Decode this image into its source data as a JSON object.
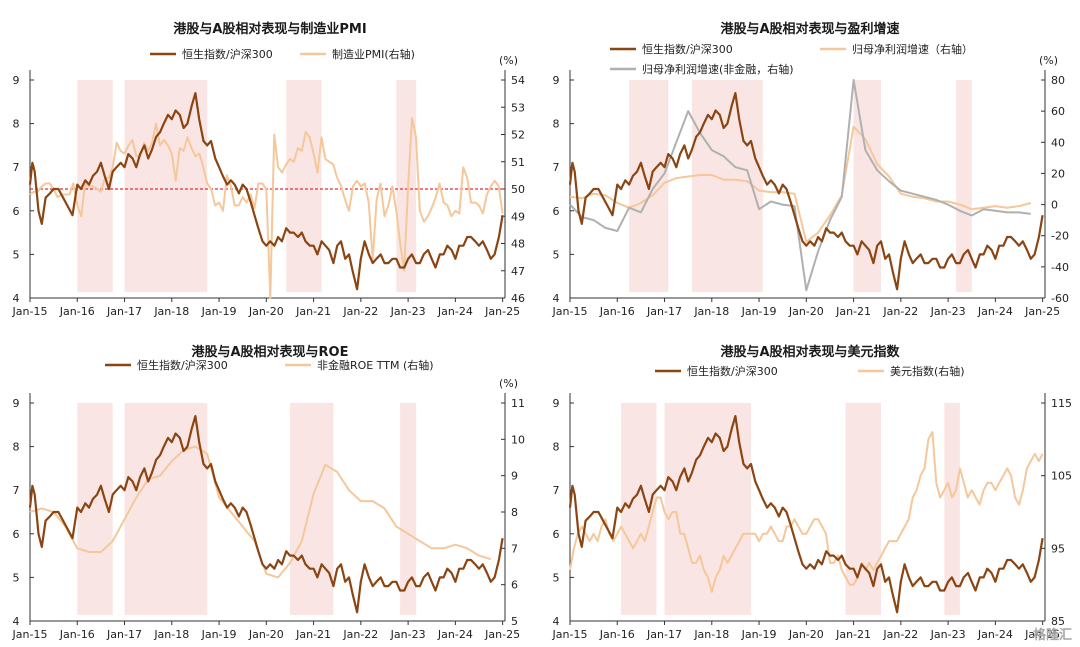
{
  "colors": {
    "hk": "#8B4513",
    "right": "#F5C79A",
    "gray": "#B0B0B0",
    "shade": "#F9E6E4",
    "ref": "#E03030"
  },
  "watermark": "格隆汇",
  "x_labels": [
    "Jan-15",
    "Jan-16",
    "Jan-17",
    "Jan-18",
    "Jan-19",
    "Jan-20",
    "Jan-21",
    "Jan-22",
    "Jan-23",
    "Jan-24",
    "Jan-25"
  ],
  "left_ticks": [
    "4",
    "5",
    "6",
    "7",
    "8",
    "9"
  ],
  "hk_series": {
    "name": "恒生指数/沪深300",
    "x": [
      2015.0,
      2015.05,
      2015.1,
      2015.18,
      2015.25,
      2015.33,
      2015.42,
      2015.5,
      2015.6,
      2015.7,
      2015.8,
      2015.9,
      2016.0,
      2016.08,
      2016.17,
      2016.25,
      2016.33,
      2016.42,
      2016.5,
      2016.58,
      2016.67,
      2016.75,
      2016.83,
      2016.92,
      2017.0,
      2017.08,
      2017.17,
      2017.25,
      2017.33,
      2017.42,
      2017.5,
      2017.58,
      2017.67,
      2017.75,
      2017.83,
      2017.92,
      2018.0,
      2018.08,
      2018.17,
      2018.25,
      2018.33,
      2018.42,
      2018.5,
      2018.58,
      2018.67,
      2018.75,
      2018.83,
      2018.92,
      2019.0,
      2019.08,
      2019.17,
      2019.25,
      2019.33,
      2019.42,
      2019.5,
      2019.58,
      2019.67,
      2019.75,
      2019.83,
      2019.92,
      2020.0,
      2020.08,
      2020.17,
      2020.25,
      2020.33,
      2020.42,
      2020.5,
      2020.58,
      2020.67,
      2020.75,
      2020.83,
      2020.92,
      2021.0,
      2021.08,
      2021.17,
      2021.25,
      2021.33,
      2021.42,
      2021.5,
      2021.58,
      2021.67,
      2021.75,
      2021.83,
      2021.92,
      2022.0,
      2022.08,
      2022.17,
      2022.25,
      2022.33,
      2022.42,
      2022.5,
      2022.58,
      2022.67,
      2022.75,
      2022.83,
      2022.92,
      2023.0,
      2023.08,
      2023.17,
      2023.25,
      2023.33,
      2023.42,
      2023.5,
      2023.58,
      2023.67,
      2023.75,
      2023.83,
      2023.92,
      2024.0,
      2024.08,
      2024.17,
      2024.25,
      2024.33,
      2024.42,
      2024.5,
      2024.58,
      2024.67,
      2024.75,
      2024.83,
      2024.92,
      2025.0
    ],
    "values": [
      6.6,
      7.1,
      6.9,
      6.0,
      5.7,
      6.3,
      6.4,
      6.5,
      6.5,
      6.3,
      6.1,
      5.9,
      6.6,
      6.5,
      6.7,
      6.6,
      6.8,
      6.9,
      7.1,
      6.8,
      6.5,
      6.9,
      7.0,
      7.1,
      7.0,
      7.3,
      7.2,
      7.0,
      7.3,
      7.5,
      7.2,
      7.4,
      7.7,
      7.8,
      8.0,
      8.2,
      8.1,
      8.3,
      8.2,
      7.9,
      8.0,
      8.4,
      8.7,
      8.1,
      7.6,
      7.5,
      7.6,
      7.2,
      7.0,
      6.8,
      6.6,
      6.7,
      6.6,
      6.4,
      6.6,
      6.5,
      6.2,
      5.9,
      5.6,
      5.3,
      5.2,
      5.3,
      5.2,
      5.4,
      5.3,
      5.6,
      5.5,
      5.5,
      5.4,
      5.5,
      5.3,
      5.2,
      5.2,
      5.0,
      5.3,
      5.2,
      5.1,
      4.8,
      5.2,
      5.3,
      4.9,
      5.0,
      4.6,
      4.2,
      4.9,
      5.3,
      5.0,
      4.8,
      4.9,
      5.0,
      4.8,
      4.8,
      4.9,
      4.9,
      4.7,
      4.7,
      4.9,
      5.0,
      4.8,
      4.8,
      5.0,
      5.1,
      4.9,
      4.7,
      5.0,
      5.0,
      5.2,
      5.1,
      4.9,
      5.2,
      5.2,
      5.4,
      5.4,
      5.3,
      5.2,
      5.3,
      5.1,
      4.9,
      5.0,
      5.4,
      5.9
    ]
  },
  "panels": [
    {
      "title": "港股与A股相对表现与制造业PMI",
      "left_range": [
        4,
        9
      ],
      "right_range": [
        46,
        54
      ],
      "right_ticks": [
        "46",
        "47",
        "48",
        "49",
        "50",
        "51",
        "52",
        "53",
        "54"
      ],
      "right_unit": "(%)",
      "legend": [
        {
          "label": "恒生指数/沪深300"
        },
        {
          "label": "制造业PMI(右轴)"
        }
      ],
      "reference_line": 50,
      "shading": [
        [
          2016.0,
          2016.75
        ],
        [
          2017.0,
          2018.75
        ],
        [
          2020.42,
          2021.17
        ],
        [
          2022.75,
          2023.17
        ]
      ],
      "right_series": [
        {
          "name": "制造业PMI(右轴)",
          "values": [
            49.8,
            49.9,
            49.9,
            50.1,
            50.2,
            50.2,
            50.0,
            49.7,
            49.8,
            49.8,
            49.8,
            50.2,
            49.4,
            49.0,
            50.2,
            50.1,
            50.1,
            50.0,
            49.9,
            50.4,
            50.4,
            50.8,
            51.7,
            51.4,
            51.3,
            51.6,
            51.8,
            51.2,
            51.2,
            51.7,
            51.4,
            51.7,
            52.4,
            51.6,
            51.8,
            51.6,
            51.3,
            50.3,
            51.5,
            51.4,
            51.9,
            51.5,
            51.2,
            51.3,
            50.8,
            50.2,
            50.0,
            49.4,
            49.5,
            49.2,
            50.5,
            50.1,
            49.4,
            49.4,
            49.7,
            49.5,
            49.8,
            49.3,
            50.2,
            50.2,
            50.0,
            35.7,
            52.0,
            50.8,
            50.6,
            50.9,
            51.1,
            51.0,
            51.5,
            51.4,
            52.1,
            51.9,
            51.3,
            50.6,
            51.9,
            51.1,
            51.0,
            50.9,
            50.4,
            50.1,
            49.6,
            49.2,
            50.1,
            50.3,
            50.1,
            50.2,
            49.5,
            47.4,
            49.6,
            50.2,
            49.0,
            49.4,
            50.1,
            49.2,
            48.0,
            47.0,
            50.1,
            52.6,
            51.9,
            49.2,
            48.8,
            49.0,
            49.3,
            49.7,
            50.2,
            49.5,
            49.4,
            49.0,
            49.2,
            49.1,
            50.8,
            50.4,
            49.5,
            49.5,
            49.4,
            49.1,
            49.8,
            50.1,
            50.3,
            50.1,
            49.1
          ]
        }
      ]
    },
    {
      "title": "港股与A股相对表现与盈利增速",
      "left_range": [
        4,
        9
      ],
      "right_range": [
        -60,
        80
      ],
      "right_ticks": [
        "-60",
        "-40",
        "-20",
        "0",
        "20",
        "40",
        "60",
        "80"
      ],
      "right_unit": "(%)",
      "legend": [
        {
          "label": "恒生指数/沪深300"
        },
        {
          "label": "归母净利润增速（右轴）"
        },
        {
          "label": "归母净利润增速(非金融，右轴)"
        }
      ],
      "shading": [
        [
          2016.25,
          2017.08
        ],
        [
          2017.58,
          2019.08
        ],
        [
          2021.0,
          2021.58
        ],
        [
          2023.17,
          2023.5
        ]
      ],
      "right_series": [
        {
          "name": "归母净利润增速（右轴）",
          "x": [
            2015.0,
            2015.25,
            2015.5,
            2015.75,
            2016.0,
            2016.25,
            2016.5,
            2016.75,
            2017.0,
            2017.25,
            2017.5,
            2017.75,
            2018.0,
            2018.25,
            2018.5,
            2018.75,
            2019.0,
            2019.25,
            2019.5,
            2019.75,
            2020.0,
            2020.25,
            2020.5,
            2020.75,
            2021.0,
            2021.25,
            2021.5,
            2021.75,
            2022.0,
            2022.25,
            2022.5,
            2022.75,
            2023.0,
            2023.25,
            2023.5,
            2023.75,
            2024.0,
            2024.25,
            2024.5,
            2024.75
          ],
          "values": [
            5,
            4,
            7,
            6,
            1,
            -2,
            1,
            6,
            14,
            17,
            18,
            19,
            19,
            16,
            16,
            15,
            9,
            8,
            8,
            7,
            -24,
            -18,
            -7,
            6,
            50,
            42,
            26,
            18,
            7,
            5,
            4,
            2,
            2,
            0,
            -3,
            -2,
            -1,
            -2,
            -1,
            1
          ]
        },
        {
          "name": "归母净利润增速(非金融，右轴)",
          "x": [
            2015.0,
            2015.25,
            2015.5,
            2015.75,
            2016.0,
            2016.25,
            2016.5,
            2016.75,
            2017.0,
            2017.25,
            2017.5,
            2017.75,
            2018.0,
            2018.25,
            2018.5,
            2018.75,
            2019.0,
            2019.25,
            2019.5,
            2019.75,
            2020.0,
            2020.25,
            2020.5,
            2020.75,
            2021.0,
            2021.25,
            2021.5,
            2021.75,
            2022.0,
            2022.25,
            2022.5,
            2022.75,
            2023.0,
            2023.25,
            2023.5,
            2023.75,
            2024.0,
            2024.25,
            2024.5,
            2024.75
          ],
          "values": [
            0,
            -8,
            -10,
            -15,
            -17,
            -2,
            -5,
            10,
            20,
            40,
            60,
            46,
            35,
            31,
            24,
            22,
            -3,
            2,
            0,
            -1,
            -55,
            -30,
            -10,
            5,
            80,
            35,
            22,
            15,
            9,
            7,
            5,
            3,
            0,
            -4,
            -7,
            -3,
            -4,
            -5,
            -5,
            -6
          ]
        }
      ]
    },
    {
      "title": "港股与A股相对表现与ROE",
      "left_range": [
        4,
        9
      ],
      "right_range": [
        5,
        11
      ],
      "right_ticks": [
        "5",
        "6",
        "7",
        "8",
        "9",
        "10",
        "11"
      ],
      "right_unit": "(%)",
      "legend": [
        {
          "label": "恒生指数/沪深300"
        },
        {
          "label": "非金融ROE TTM (右轴)"
        }
      ],
      "shading": [
        [
          2016.0,
          2016.75
        ],
        [
          2017.0,
          2018.75
        ],
        [
          2020.5,
          2021.42
        ],
        [
          2022.83,
          2023.17
        ]
      ],
      "right_series": [
        {
          "name": "非金融ROE TTM (右轴)",
          "x": [
            2015.0,
            2015.25,
            2015.5,
            2015.75,
            2016.0,
            2016.25,
            2016.5,
            2016.75,
            2017.0,
            2017.25,
            2017.5,
            2017.75,
            2018.0,
            2018.25,
            2018.5,
            2018.75,
            2019.0,
            2019.25,
            2019.5,
            2019.75,
            2020.0,
            2020.25,
            2020.5,
            2020.75,
            2021.0,
            2021.25,
            2021.5,
            2021.75,
            2022.0,
            2022.25,
            2022.5,
            2022.75,
            2023.0,
            2023.25,
            2023.5,
            2023.75,
            2024.0,
            2024.25,
            2024.5,
            2024.75
          ],
          "values": [
            8.0,
            8.1,
            8.0,
            7.6,
            7.0,
            6.9,
            6.9,
            7.2,
            7.8,
            8.4,
            8.9,
            9.0,
            9.4,
            9.7,
            9.8,
            9.6,
            8.4,
            8.0,
            7.6,
            7.2,
            6.3,
            6.2,
            6.6,
            7.2,
            8.5,
            9.3,
            9.1,
            8.6,
            8.3,
            8.3,
            8.1,
            7.6,
            7.4,
            7.2,
            7.0,
            7.0,
            7.1,
            7.0,
            6.8,
            6.7
          ]
        }
      ]
    },
    {
      "title": "港股与A股相对表现与美元指数",
      "left_range": [
        4,
        9
      ],
      "right_range": [
        85,
        115
      ],
      "right_ticks": [
        "85",
        "95",
        "105",
        "115"
      ],
      "right_unit": "",
      "legend": [
        {
          "label": "恒生指数/沪深300"
        },
        {
          "label": "美元指数(右轴)"
        }
      ],
      "shading": [
        [
          2016.08,
          2016.83
        ],
        [
          2017.0,
          2018.83
        ],
        [
          2020.83,
          2021.58
        ],
        [
          2022.92,
          2023.25
        ]
      ],
      "right_series": [
        {
          "name": "美元指数(右轴)",
          "values": [
            92,
            95,
            97,
            98,
            97,
            96,
            97,
            96,
            98,
            99,
            97,
            96,
            97,
            98,
            97,
            96,
            95,
            96,
            97,
            96,
            98,
            100,
            102,
            102,
            100,
            99,
            100,
            100,
            97,
            97,
            95,
            93,
            93,
            94,
            92,
            91,
            89,
            91,
            92,
            94,
            93,
            94,
            95,
            96,
            97,
            97,
            97,
            97,
            96,
            97,
            97,
            98,
            97,
            96,
            96,
            98,
            98,
            99,
            98,
            97,
            97,
            98,
            99,
            99,
            98,
            97,
            93,
            93,
            94,
            92,
            91,
            90,
            90,
            91,
            93,
            92,
            93,
            92,
            93,
            94,
            95,
            96,
            96,
            96,
            97,
            98,
            99,
            102,
            103,
            105,
            106,
            110,
            111,
            104,
            102,
            103,
            104,
            102,
            103,
            106,
            104,
            102,
            103,
            102,
            101,
            103,
            104,
            104,
            103,
            104,
            105,
            106,
            105,
            102,
            101,
            103,
            106,
            107,
            108,
            107,
            108
          ]
        }
      ]
    }
  ]
}
